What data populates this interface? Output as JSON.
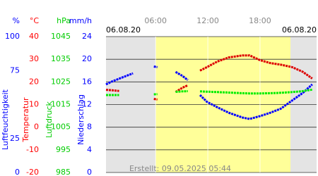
{
  "chart_data": {
    "type": "line",
    "date_left": "06.08.20",
    "date_right": "06.08.20",
    "footer": "Erstellt: 09.05.2025 05:44",
    "xlim": [
      0.3,
      24.5
    ],
    "xticks": [
      {
        "value": 6,
        "label": "06:00"
      },
      {
        "value": 12,
        "label": "12:00"
      },
      {
        "value": 18,
        "label": "18:00"
      }
    ],
    "daylight": [
      6,
      21.5
    ],
    "grid": true,
    "axes": [
      {
        "unit": "%",
        "label": "Luftfeuchtigkeit",
        "color": "#0000ff",
        "ylim": [
          0,
          100
        ],
        "yticks": [
          0,
          25,
          75,
          100
        ]
      },
      {
        "unit": "°C",
        "label": "Temperatur",
        "color": "#ff0000",
        "ylim": [
          -20,
          40
        ],
        "yticks": [
          -20,
          -10,
          0,
          10,
          20,
          30,
          40
        ]
      },
      {
        "unit": "hPa",
        "label": "Luftdruck",
        "color": "#00cc00",
        "ylim": [
          985,
          1045
        ],
        "yticks": [
          985,
          995,
          1005,
          1015,
          1025,
          1035,
          1045
        ]
      },
      {
        "unit": "mm/h",
        "label": "Niederschlag",
        "color": "#0000ff",
        "ylim": [
          0,
          24
        ],
        "yticks": [
          0,
          4,
          8,
          12,
          16,
          20,
          24
        ]
      }
    ],
    "x": [
      0.3,
      1,
      1.8,
      3.4,
      4.5,
      5.8,
      6.2,
      7.2,
      8.3,
      9.1,
      9.7,
      10.4,
      11.1,
      11.9,
      13.1,
      14.4,
      16,
      16.8,
      18,
      19.2,
      20.4,
      21.7,
      22.9,
      24
    ],
    "series": [
      {
        "name": "Luftfeuchtigkeit",
        "axis": 0,
        "color": "#0000ff",
        "values": [
          64.8,
          67,
          69,
          73,
          null,
          78,
          77.5,
          null,
          74,
          71,
          68,
          null,
          57,
          52,
          48,
          44,
          40.4,
          39.4,
          41.5,
          44,
          47,
          53,
          58.5,
          64.8
        ]
      },
      {
        "name": "Temperatur",
        "axis": 1,
        "color": "#dd0000",
        "values": [
          16.5,
          16.3,
          16,
          null,
          null,
          12.5,
          12.2,
          null,
          15.5,
          17.5,
          18.5,
          null,
          25,
          26.5,
          29,
          30.8,
          31.7,
          31.7,
          29.6,
          28.3,
          27.6,
          26.5,
          24.5,
          21.5
        ]
      },
      {
        "name": "Luftdruck",
        "axis": 2,
        "color": "#00ee00",
        "values": [
          1019.2,
          1019.2,
          1019.2,
          null,
          null,
          1019.5,
          1019.6,
          null,
          1020.6,
          1020.8,
          1020.9,
          null,
          1020.8,
          1020.7,
          1020.5,
          1020.3,
          1020,
          1019.9,
          1019.9,
          1020,
          1020.2,
          1020.5,
          1020.9,
          1021.6
        ]
      }
    ]
  }
}
